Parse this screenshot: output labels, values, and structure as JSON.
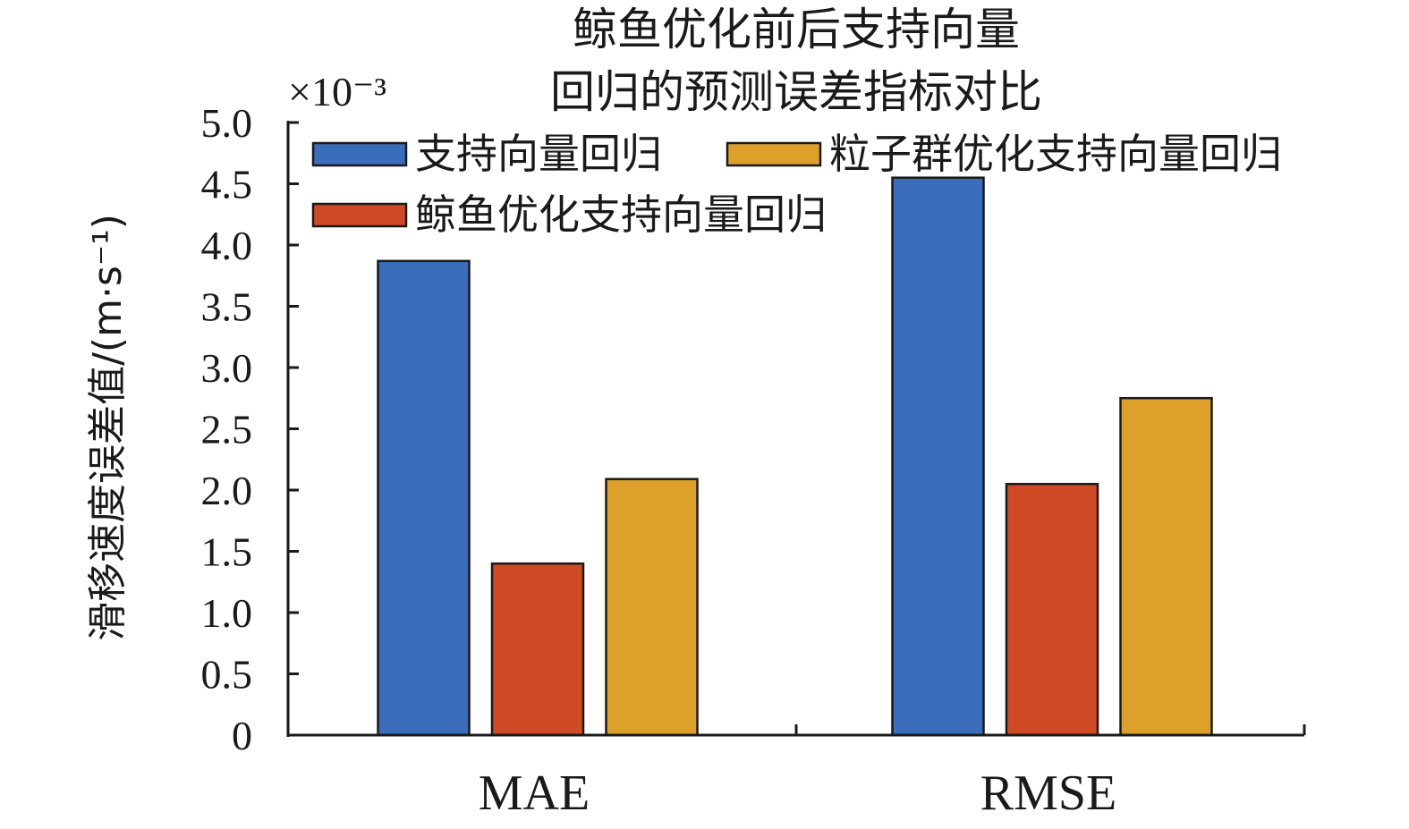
{
  "chart_data": {
    "type": "bar",
    "title_lines": [
      "鲸鱼优化前后支持向量",
      "回归的预测误差指标对比"
    ],
    "ylabel": "滑移速度误差值/(m·s⁻¹)",
    "xlabel": "",
    "y_multiplier": "×10⁻³",
    "ylim": [
      0,
      5.0
    ],
    "ytick_labels": [
      "0",
      "0.5",
      "1.0",
      "1.5",
      "2.0",
      "2.5",
      "3.0",
      "3.5",
      "4.0",
      "4.5",
      "5.0"
    ],
    "categories": [
      "MAE",
      "RMSE"
    ],
    "series": [
      {
        "name": "支持向量回归",
        "color": "#3a6dbb",
        "values": [
          3.87,
          4.55
        ]
      },
      {
        "name": "鲸鱼优化支持向量回归",
        "color": "#cf4a25",
        "values": [
          1.4,
          2.05
        ]
      },
      {
        "name": "粒子群优化支持向量回归",
        "color": "#dda02b",
        "values": [
          2.09,
          2.75
        ]
      }
    ],
    "legend_position": "top-left",
    "grid": false
  }
}
